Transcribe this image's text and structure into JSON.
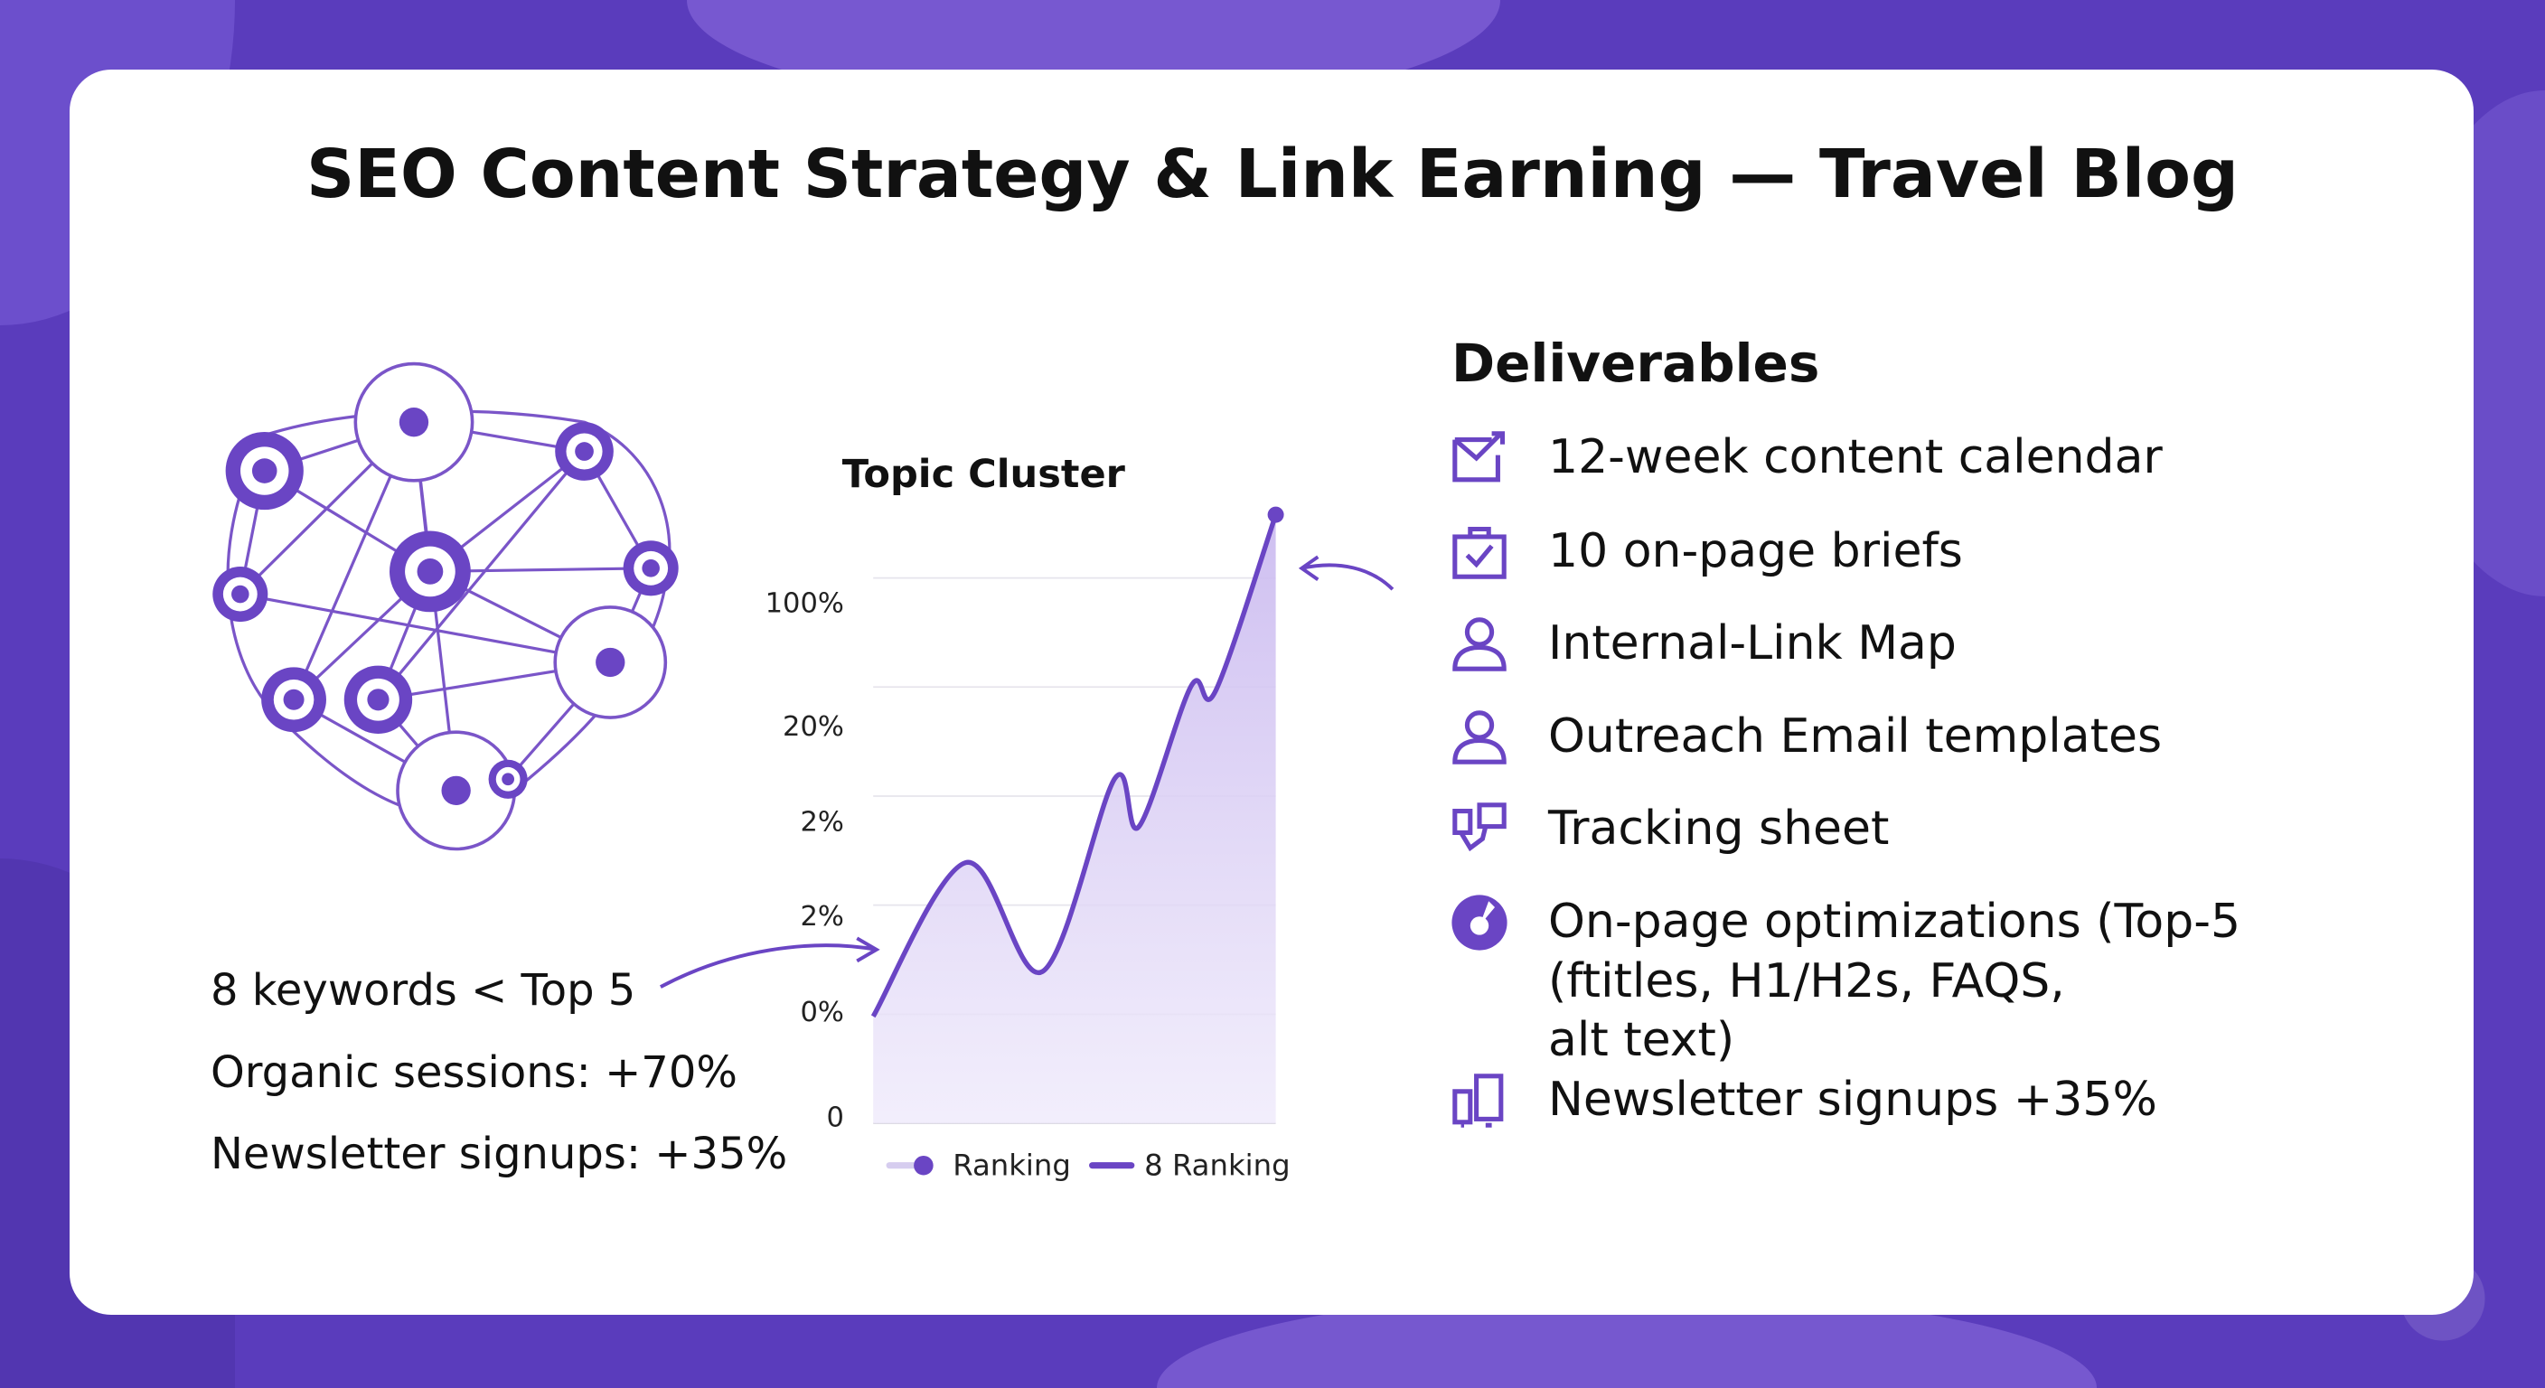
{
  "title": "SEO Content Strategy & Link Earning — Travel Blog",
  "stats": [
    "8 keywords < Top 5",
    "Organic sessions: +70%",
    "Newsletter signups: +35%"
  ],
  "deliverables": {
    "heading": "Deliverables",
    "items": [
      {
        "icon": "calendar-check-icon",
        "label": "12-week content calendar"
      },
      {
        "icon": "briefcase-check-icon",
        "label": "10 on-page briefs"
      },
      {
        "icon": "user-icon",
        "label": "Internal-Link Map"
      },
      {
        "icon": "user-icon",
        "label": "Outreach Email templates"
      },
      {
        "icon": "tracking-icon",
        "label": "Tracking sheet"
      },
      {
        "icon": "donut-icon",
        "label": "On-page optimizations (Top-5",
        "line2": "(ftitles, H1/H2s, FAQS,",
        "line3": "alt text)"
      },
      {
        "icon": "devices-icon",
        "label": "Newsletter signups +35%"
      }
    ]
  },
  "colors": {
    "accent": "#6a45c4",
    "background": "#5a3cbc",
    "fill": "#d9cff2"
  },
  "chart_data": {
    "type": "area",
    "title": "Topic Cluster",
    "y_tick_labels": [
      "0",
      "0%",
      "2%",
      "2%",
      "20%",
      "100%"
    ],
    "x": [
      0,
      2.3,
      4.2,
      6.0,
      6.6,
      7.9,
      8.5,
      10
    ],
    "series": [
      {
        "name": "8 Ranking",
        "values": [
          0.98,
          2.39,
          1.39,
          3.16,
          2.72,
          4.01,
          3.96,
          5.58
        ]
      }
    ],
    "legend": [
      "Ranking",
      "8 Ranking"
    ],
    "legend_placement": "bottom",
    "grid": true,
    "end_marker": true
  }
}
